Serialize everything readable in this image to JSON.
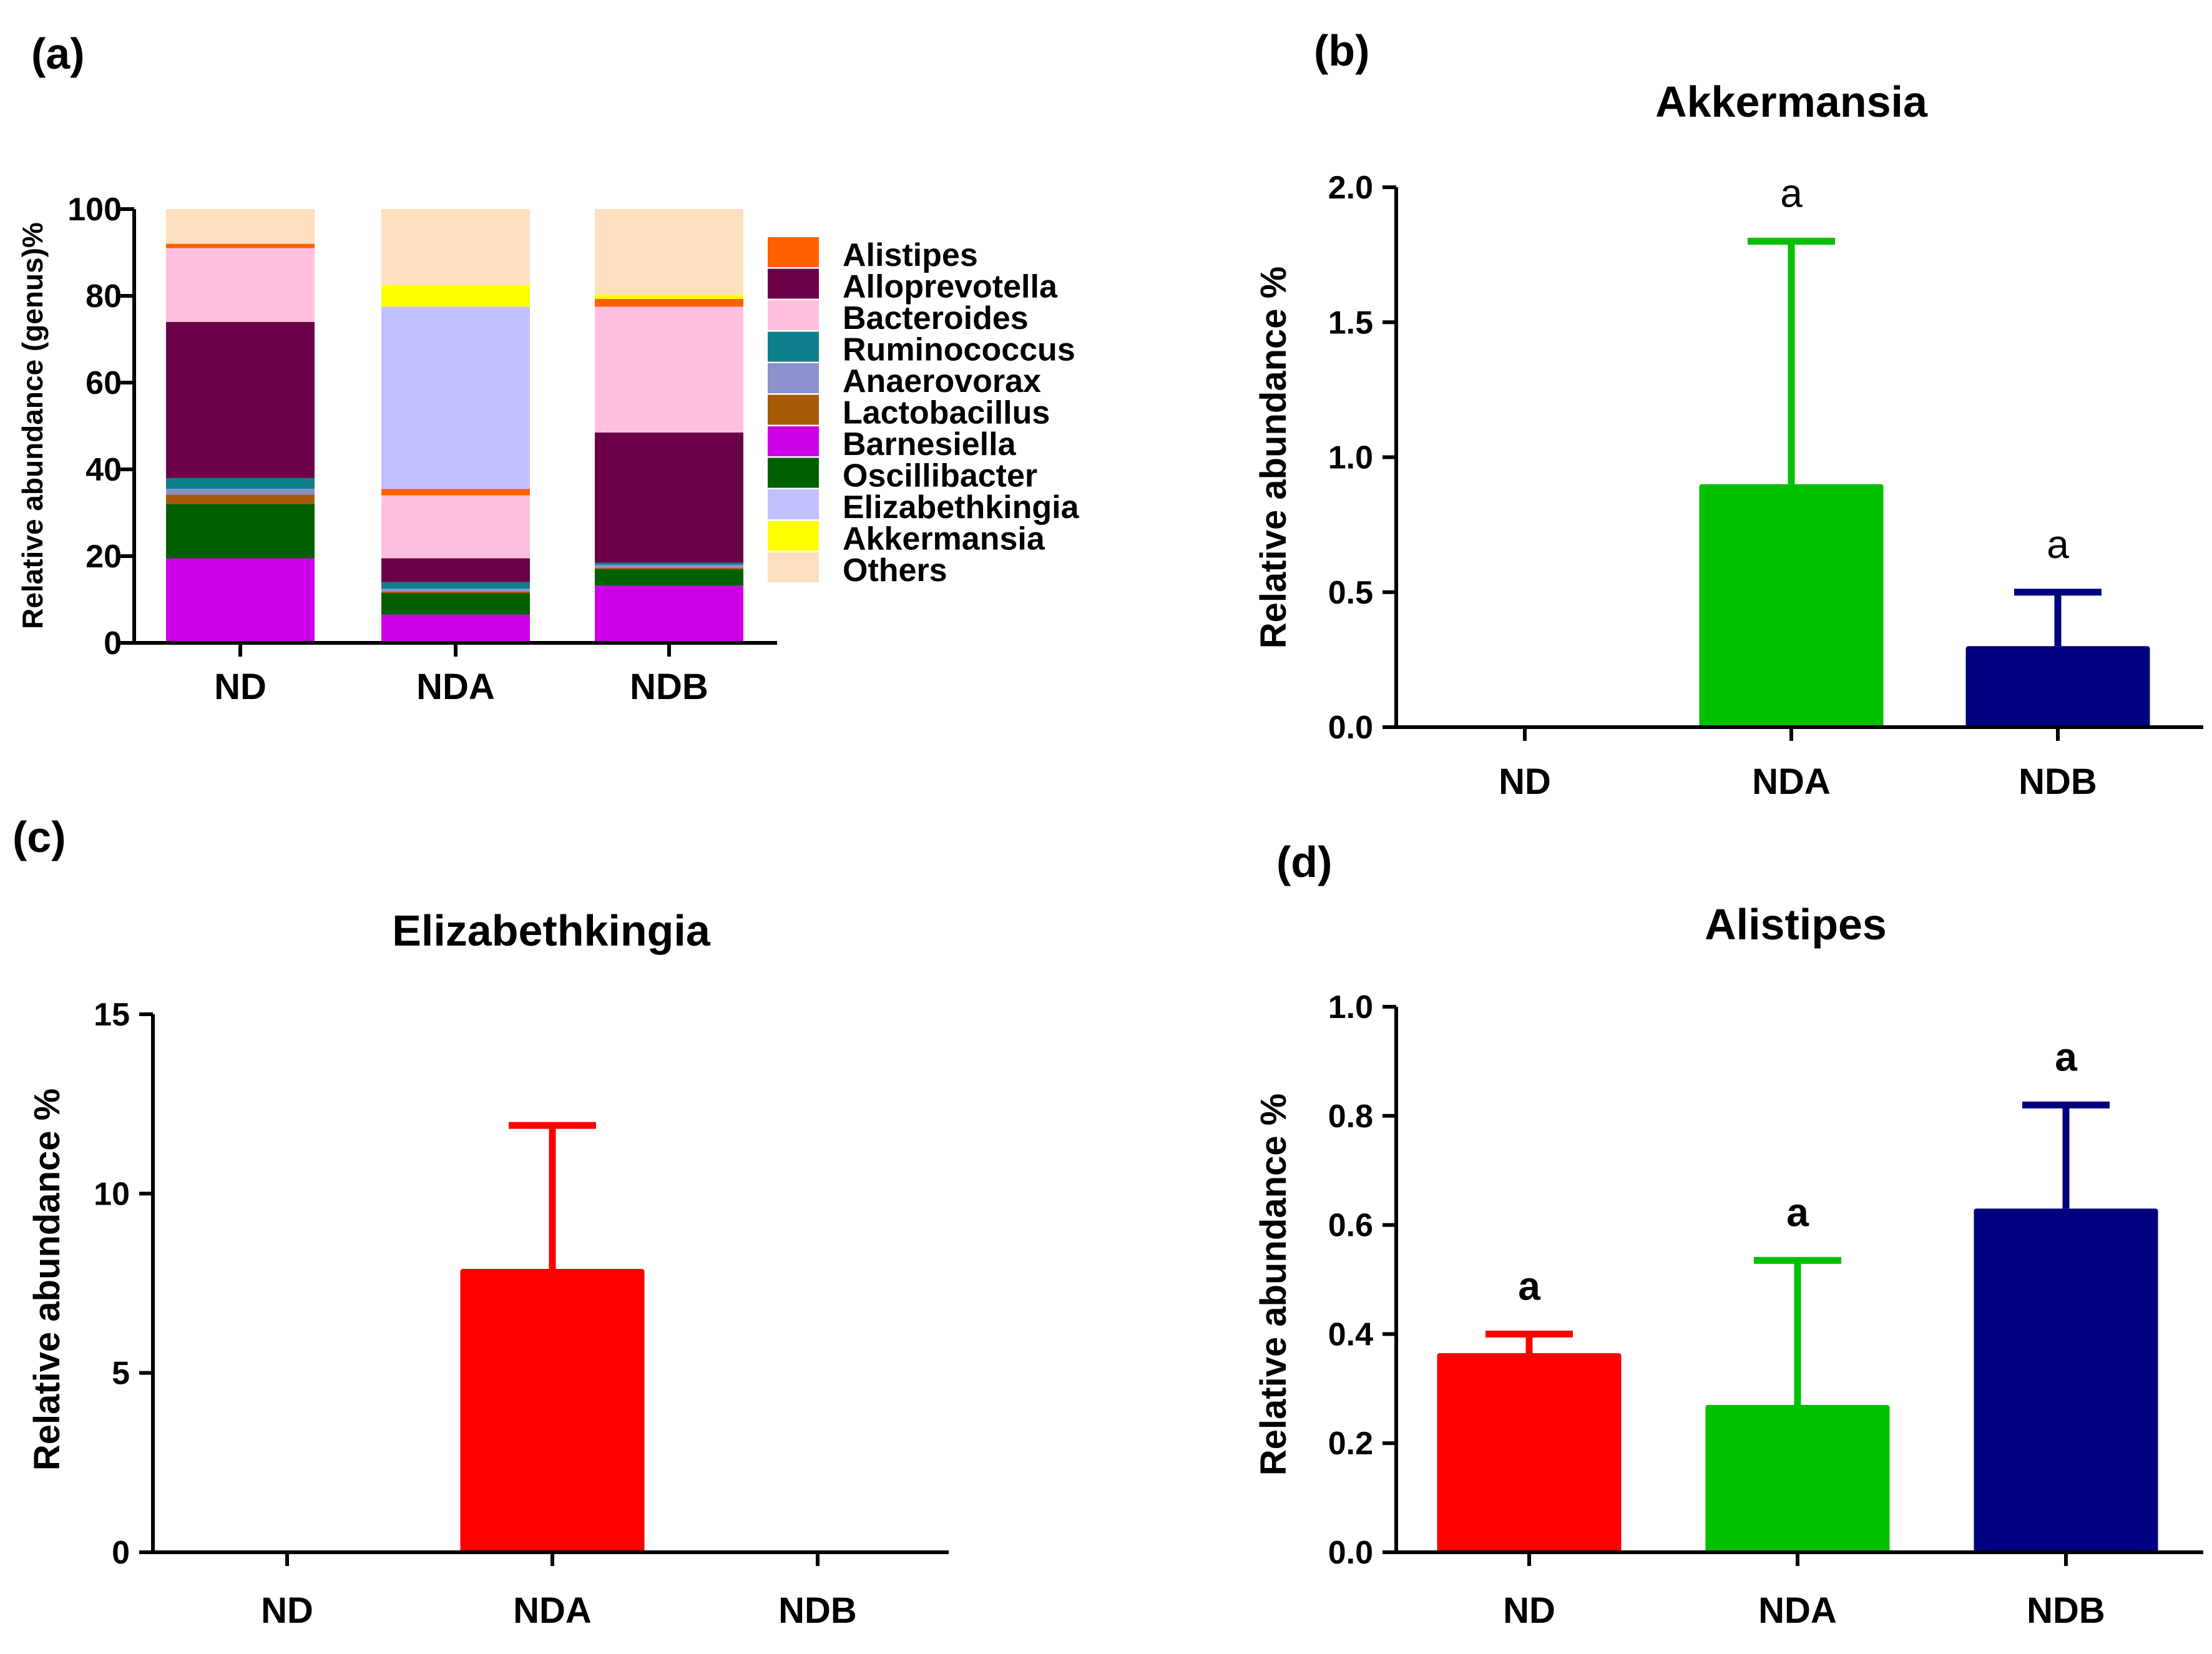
{
  "chart_data": [
    {
      "id": "a",
      "panel_label": "(a)",
      "type": "bar",
      "stacked": true,
      "title": "",
      "categories": [
        "ND",
        "NDA",
        "NDB"
      ],
      "ylabel": "Relative abundance (genus)%",
      "ylim": [
        0,
        100
      ],
      "yticks": [
        "0",
        "20",
        "40",
        "60",
        "80",
        "100"
      ],
      "legend_position": "right",
      "series": [
        {
          "name": "Barnesiella",
          "color": "#cc00e6",
          "values": [
            19.5,
            6.5,
            13.2
          ]
        },
        {
          "name": "Oscillibacter",
          "color": "#006000",
          "values": [
            12.5,
            5.0,
            3.8
          ]
        },
        {
          "name": "Lactobacillus",
          "color": "#a85a08",
          "values": [
            2.2,
            0.3,
            0.3
          ]
        },
        {
          "name": "Anaerovorax",
          "color": "#8a91cc",
          "values": [
            1.3,
            0.7,
            0.7
          ]
        },
        {
          "name": "Ruminococcus",
          "color": "#0e7f8c",
          "values": [
            2.5,
            1.5,
            0.5
          ]
        },
        {
          "name": "Alloprevotella",
          "color": "#6c0048",
          "values": [
            36.0,
            5.5,
            30.0
          ]
        },
        {
          "name": "Bacteroides",
          "color": "#ffc0e0",
          "values": [
            17.0,
            14.5,
            29.0
          ]
        },
        {
          "name": "Alistipes",
          "color": "#ff6000",
          "values": [
            1.0,
            1.5,
            1.8
          ]
        },
        {
          "name": "Elizabethkingia",
          "color": "#c0c0ff",
          "values": [
            0.0,
            42.0,
            0.0
          ]
        },
        {
          "name": "Akkermansia",
          "color": "#ffff00",
          "values": [
            0.0,
            5.0,
            1.0
          ]
        },
        {
          "name": "Others",
          "color": "#fde0c0",
          "values": [
            8.0,
            17.5,
            19.7
          ]
        }
      ],
      "legend_order": [
        "Alistipes",
        "Alloprevotella",
        "Bacteroides",
        "Ruminococcus",
        "Anaerovorax",
        "Lactobacillus",
        "Barnesiella",
        "Oscillibacter",
        "Elizabethkingia",
        "Akkermansia",
        "Others"
      ]
    },
    {
      "id": "b",
      "panel_label": "(b)",
      "type": "bar",
      "title": "Akkermansia",
      "categories": [
        "ND",
        "NDA",
        "NDB"
      ],
      "ylabel": "Relative abundance %",
      "ylim": [
        0,
        2.0
      ],
      "yticks": [
        "0.0",
        "0.5",
        "1.0",
        "1.5",
        "2.0"
      ],
      "values": [
        0.0,
        0.9,
        0.3
      ],
      "errors": [
        0.0,
        0.9,
        0.2
      ],
      "colors": [
        "#ff0000",
        "#00c000",
        "#000080"
      ],
      "significance": [
        "",
        "a",
        "a"
      ]
    },
    {
      "id": "c",
      "panel_label": "(c)",
      "type": "bar",
      "title": "Elizabethkingia",
      "categories": [
        "ND",
        "NDA",
        "NDB"
      ],
      "ylabel": "Relative abundance %",
      "ylim": [
        0,
        15
      ],
      "yticks": [
        "0",
        "5",
        "10",
        "15"
      ],
      "values": [
        0.0,
        7.9,
        0.0
      ],
      "errors": [
        0.0,
        4.0,
        0.0
      ],
      "colors": [
        "#ff0000",
        "#ff0000",
        "#ff0000"
      ],
      "significance": [
        "",
        "",
        ""
      ]
    },
    {
      "id": "d",
      "panel_label": "(d)",
      "type": "bar",
      "title": "Alistipes",
      "categories": [
        "ND",
        "NDA",
        "NDB"
      ],
      "ylabel": "Relative abundance %",
      "ylim": [
        0,
        1.0
      ],
      "yticks": [
        "0.0",
        "0.2",
        "0.4",
        "0.6",
        "0.8",
        "1.0"
      ],
      "values": [
        0.365,
        0.27,
        0.63
      ],
      "errors": [
        0.035,
        0.265,
        0.19
      ],
      "colors": [
        "#ff0000",
        "#00c000",
        "#000080"
      ],
      "significance": [
        "a",
        "a",
        "a"
      ]
    }
  ]
}
